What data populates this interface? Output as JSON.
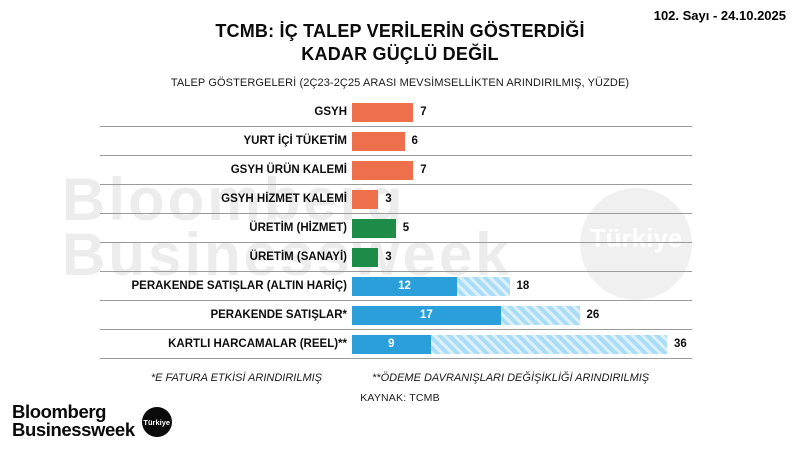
{
  "header": {
    "issue": "102. Sayı - 24.10.2025",
    "title_line1": "TCMB: İÇ TALEP VERİLERİN GÖSTERDİĞİ",
    "title_line2": "KADAR GÜÇLÜ DEĞİL",
    "subtitle": "TALEP GÖSTERGELERİ (2Ç23-2Ç25 ARASI MEVSİMSELLİKTEN ARINDIRILMIŞ, YÜZDE)"
  },
  "chart_data": {
    "type": "bar",
    "orientation": "horizontal",
    "title": "TCMB: İÇ TALEP VERİLERİN GÖSTERDİĞİ KADAR GÜÇLÜ DEĞİL",
    "subtitle": "TALEP GÖSTERGELERİ (2Ç23-2Ç25 ARASI MEVSİMSELLİKTEN ARINDIRILMIŞ, YÜZDE)",
    "unit": "yüzde",
    "xlim": [
      0,
      36
    ],
    "grid": "row-separator-lines",
    "rows": [
      {
        "label": "GSYH",
        "value": 7,
        "total": null,
        "color": "orange",
        "in_label": "",
        "end_label": "7"
      },
      {
        "label": "YURT İÇİ TÜKETİM",
        "value": 6,
        "total": null,
        "color": "orange",
        "in_label": "",
        "end_label": "6"
      },
      {
        "label": "GSYH ÜRÜN KALEMİ",
        "value": 7,
        "total": null,
        "color": "orange",
        "in_label": "",
        "end_label": "7"
      },
      {
        "label": "GSYH HİZMET KALEMİ",
        "value": 3,
        "total": null,
        "color": "orange",
        "in_label": "",
        "end_label": "3"
      },
      {
        "label": "ÜRETİM (HİZMET)",
        "value": 5,
        "total": null,
        "color": "green",
        "in_label": "",
        "end_label": "5"
      },
      {
        "label": "ÜRETİM (SANAYİ)",
        "value": 3,
        "total": null,
        "color": "green",
        "in_label": "",
        "end_label": "3"
      },
      {
        "label": "PERAKENDE SATIŞLAR (ALTIN HARİÇ)",
        "value": 12,
        "total": 18,
        "color": "blue",
        "in_label": "12",
        "end_label": "18"
      },
      {
        "label": "PERAKENDE SATIŞLAR*",
        "value": 17,
        "total": 26,
        "color": "blue",
        "in_label": "17",
        "end_label": "26"
      },
      {
        "label": "KARTLI HARCAMALAR (REEL)**",
        "value": 9,
        "total": 36,
        "color": "blue",
        "in_label": "9",
        "end_label": "36"
      }
    ]
  },
  "colors": {
    "orange": "#ED6F4B",
    "green": "#1E8C49",
    "blue": "#2B9FD9",
    "blue_light": "#A9DCF5",
    "blue_hatch_stripe": "#DCEFFA",
    "separator": "#9B9B9B"
  },
  "footer": {
    "note1": "*E FATURA ETKİSİ ARINDIRILMIŞ",
    "note2": "**ÖDEME DAVRANIŞLARI DEĞİŞİKLİĞİ ARINDIRILMIŞ",
    "source": "KAYNAK: TCMB"
  },
  "branding": {
    "logo_line1": "Bloomberg",
    "logo_line2": "Businessweek",
    "logo_badge": "Türkiye",
    "watermark_line1": "Bloomberg",
    "watermark_line2": "Businessweek",
    "watermark_badge": "Türkiye"
  }
}
